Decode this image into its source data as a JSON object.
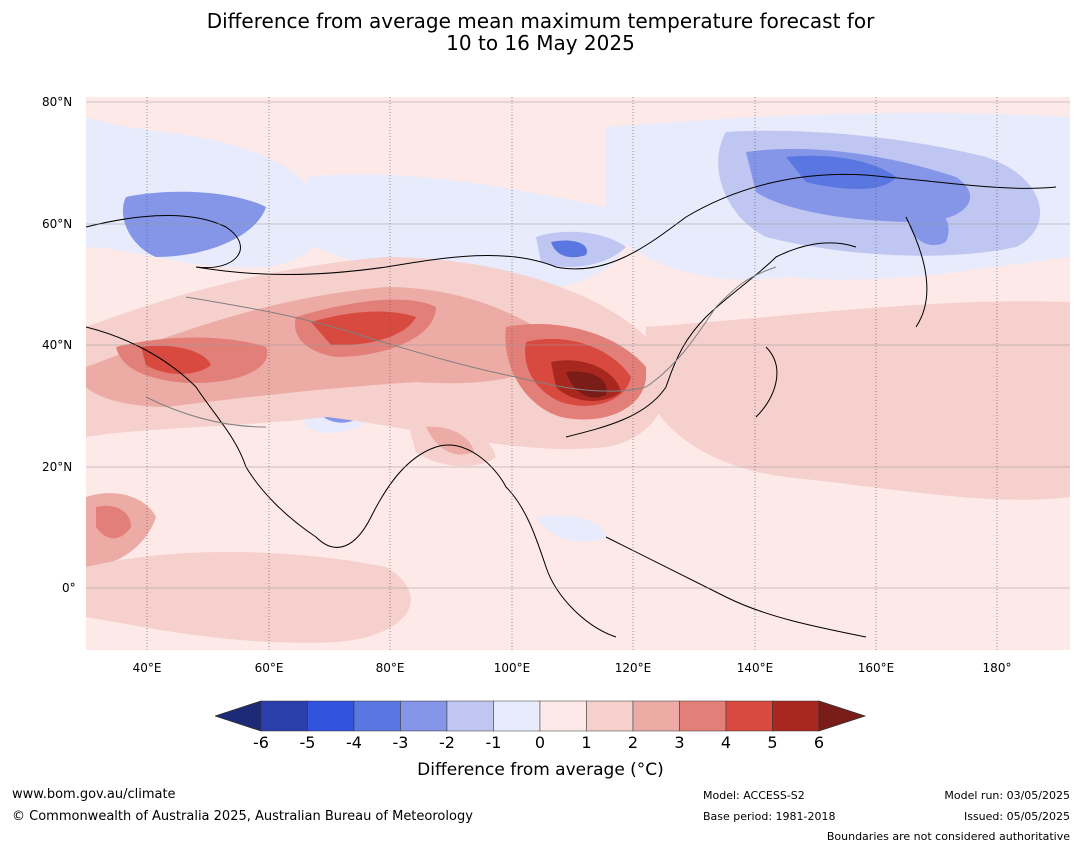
{
  "title_line1": "Difference from average mean maximum temperature forecast for",
  "title_line2": "10 to 16 May 2025",
  "lat_labels": [
    "80°N",
    "60°N",
    "40°N",
    "20°N",
    "0°"
  ],
  "lon_labels": [
    "40°E",
    "60°E",
    "80°E",
    "100°E",
    "120°E",
    "140°E",
    "160°E",
    "180°"
  ],
  "colorbar": {
    "ticks": [
      "-6",
      "-5",
      "-4",
      "-3",
      "-2",
      "-1",
      "0",
      "1",
      "2",
      "3",
      "4",
      "5",
      "6"
    ],
    "label": "Difference from average (°C)",
    "colors": [
      "#1c2a78",
      "#2a3faa",
      "#3253dc",
      "#5a76e0",
      "#8595e8",
      "#bfc6f2",
      "#e8ebfb",
      "#fce9e8",
      "#f5d0cc",
      "#ecaba5",
      "#e27f78",
      "#d84a40",
      "#a8271f",
      "#7a1c17"
    ]
  },
  "footer": {
    "website": "www.bom.gov.au/climate",
    "copyright": "© Commonwealth of Australia 2025, Australian Bureau of Meteorology",
    "model": "Model: ACCESS-S2",
    "base_period": "Base period: 1981-2018",
    "model_run": "Model run: 03/05/2025",
    "issued": "Issued: 05/05/2025",
    "disclaimer": "Boundaries are not considered authoritative"
  }
}
